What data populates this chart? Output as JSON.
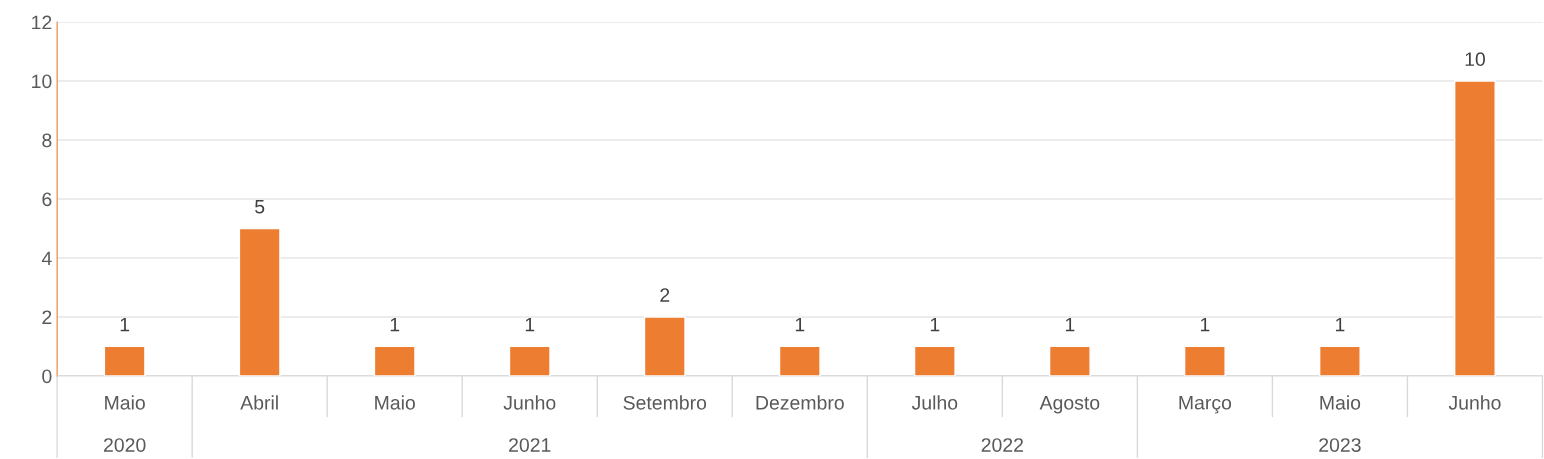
{
  "chart_data": {
    "type": "bar",
    "categories": [
      "Maio",
      "Abril",
      "Maio",
      "Junho",
      "Setembro",
      "Dezembro",
      "Julho",
      "Agosto",
      "Março",
      "Maio",
      "Junho"
    ],
    "values": [
      1,
      5,
      1,
      1,
      2,
      1,
      1,
      1,
      1,
      1,
      10
    ],
    "color": "#ed7d31",
    "annotations": [
      "2020",
      "2021",
      "2022",
      "2023"
    ],
    "ylim": [
      0,
      12
    ],
    "yticks": [
      0,
      2,
      4,
      6,
      8,
      10,
      12
    ],
    "grid": "y",
    "data_labels": true,
    "legend": false
  }
}
